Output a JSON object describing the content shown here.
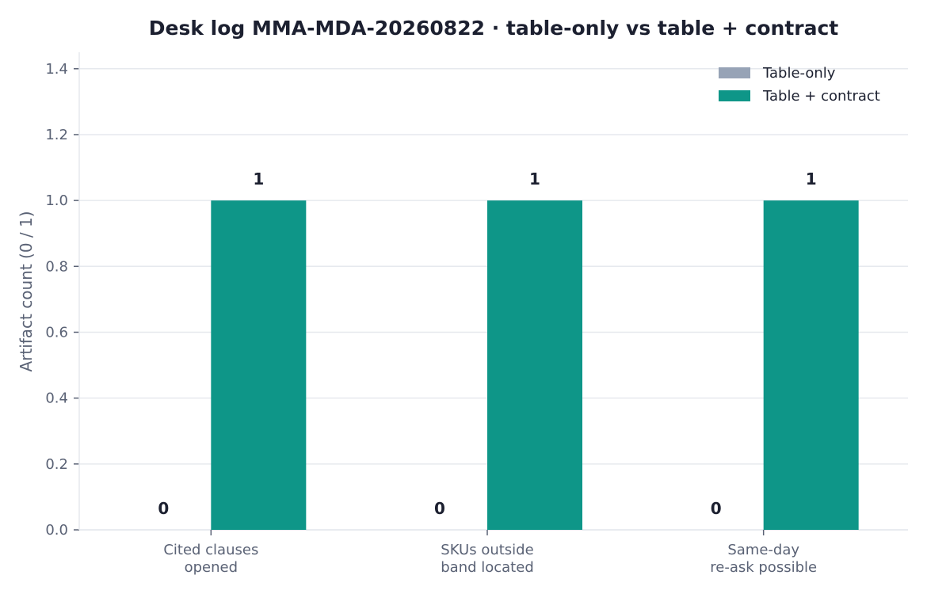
{
  "chart_data": {
    "type": "bar",
    "title": "Desk log MMA-MDA-20260822 · table-only vs table + contract",
    "xlabel": "",
    "ylabel": "Artifact count (0 / 1)",
    "categories": [
      [
        "Cited clauses",
        "opened"
      ],
      [
        "SKUs outside",
        "band located"
      ],
      [
        "Same-day",
        "re-ask possible"
      ]
    ],
    "series": [
      {
        "name": "Table-only",
        "values": [
          0,
          0,
          0
        ],
        "color": "#97a3b6"
      },
      {
        "name": "Table + contract",
        "values": [
          1,
          1,
          1
        ],
        "color": "#0e9688"
      }
    ],
    "ylim": [
      0,
      1.45
    ],
    "yticks": [
      "0.0",
      "0.2",
      "0.4",
      "0.6",
      "0.8",
      "1.0",
      "1.2",
      "1.4"
    ],
    "grid": true,
    "legend_position": "top-right"
  }
}
